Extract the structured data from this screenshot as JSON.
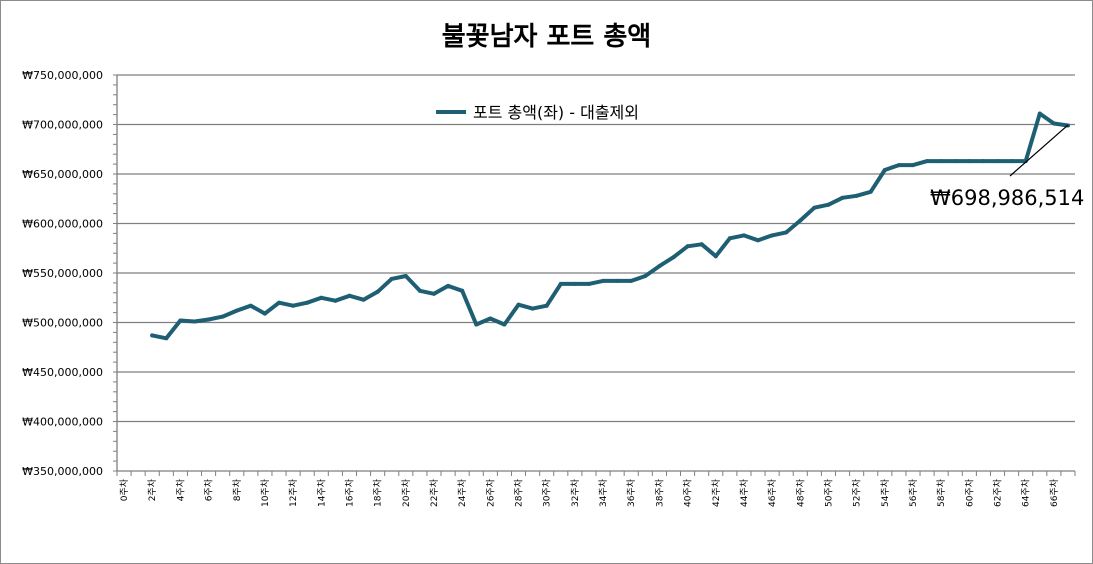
{
  "chart_data": {
    "type": "line",
    "title": "불꽃남자 포트 총액",
    "ylim": [
      350000000,
      750000000
    ],
    "y_ticks": [
      "₩350,000,000",
      "₩400,000,000",
      "₩450,000,000",
      "₩500,000,000",
      "₩550,000,000",
      "₩600,000,000",
      "₩650,000,000",
      "₩700,000,000",
      "₩750,000,000"
    ],
    "categories": [
      "0주차",
      "1주차",
      "2주차",
      "3주차",
      "4주차",
      "5주차",
      "6주차",
      "7주차",
      "8주차",
      "9주차",
      "10주차",
      "11주차",
      "12주차",
      "13주차",
      "14주차",
      "15주차",
      "16주차",
      "17주차",
      "18주차",
      "19주차",
      "20주차",
      "21주차",
      "22주차",
      "23주차",
      "24주차",
      "25주차",
      "26주차",
      "27주차",
      "28주차",
      "29주차",
      "30주차",
      "31주차",
      "32주차",
      "33주차",
      "34주차",
      "35주차",
      "36주차",
      "37주차",
      "38주차",
      "39주차",
      "40주차",
      "41주차",
      "42주차",
      "43주차",
      "44주차",
      "45주차",
      "46주차",
      "47주차",
      "48주차",
      "49주차",
      "50주차",
      "51주차",
      "52주차",
      "53주차",
      "54주차",
      "55주차",
      "56주차",
      "57주차",
      "58주차",
      "59주차",
      "60주차",
      "61주차",
      "62주차",
      "63주차",
      "64주차",
      "65주차",
      "66주차",
      "67주차"
    ],
    "x_tick_labels": [
      "0주차",
      "2주차",
      "4주차",
      "6주차",
      "8주차",
      "10주차",
      "12주차",
      "14주차",
      "16주차",
      "18주차",
      "20주차",
      "22주차",
      "24주차",
      "26주차",
      "28주차",
      "30주차",
      "32주차",
      "34주차",
      "36주차",
      "38주차",
      "40주차",
      "42주차",
      "44주차",
      "46주차",
      "48주차",
      "50주차",
      "52주차",
      "54주차",
      "56주차",
      "58주차",
      "60주차",
      "62주차",
      "64주차",
      "66주차"
    ],
    "series": [
      {
        "name": "포트 총액(좌) - 대출제외",
        "color": "#1f5f73",
        "values": [
          null,
          null,
          487000000,
          484000000,
          502000000,
          501000000,
          503000000,
          506000000,
          512000000,
          517000000,
          509000000,
          520000000,
          517000000,
          520000000,
          525000000,
          522000000,
          527000000,
          523000000,
          531000000,
          544000000,
          547000000,
          532000000,
          529000000,
          537000000,
          532000000,
          498000000,
          504000000,
          498000000,
          518000000,
          514000000,
          517000000,
          539000000,
          539000000,
          539000000,
          542000000,
          542000000,
          542000000,
          547000000,
          557000000,
          566000000,
          577000000,
          579000000,
          567000000,
          585000000,
          588000000,
          583000000,
          588000000,
          591000000,
          603000000,
          616000000,
          619000000,
          626000000,
          628000000,
          632000000,
          654000000,
          659000000,
          659000000,
          663000000,
          663000000,
          663000000,
          663000000,
          663000000,
          663000000,
          663000000,
          663000000,
          711000000,
          701000000,
          698986514
        ]
      }
    ],
    "annotation": "₩698,986,514",
    "legend_position": "top-center",
    "grid": true
  }
}
